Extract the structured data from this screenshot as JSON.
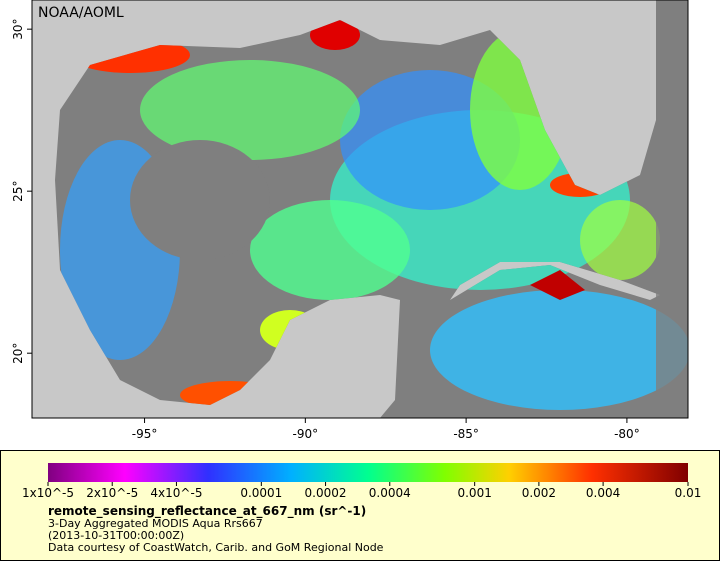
{
  "map": {
    "watermark": "NOAA/AOML",
    "lon_range": [
      -98.5,
      -78.1
    ],
    "lat_range": [
      18,
      30.9
    ],
    "lon_ticks": [
      {
        "value": -95,
        "label": "-95°"
      },
      {
        "value": -90,
        "label": "-90°"
      },
      {
        "value": -85,
        "label": "-85°"
      },
      {
        "value": -80,
        "label": "-80°"
      }
    ],
    "lat_ticks": [
      {
        "value": 20,
        "label": "20°"
      },
      {
        "value": 25,
        "label": "25°"
      },
      {
        "value": 30,
        "label": "30°"
      }
    ]
  },
  "colorbar": {
    "scale": "log",
    "range": [
      1e-05,
      0.01
    ],
    "ticks": [
      {
        "value": 1e-05,
        "label": "1x10^-5"
      },
      {
        "value": 2e-05,
        "label": "2x10^-5"
      },
      {
        "value": 4e-05,
        "label": "4x10^-5"
      },
      0.0001,
      0.0002,
      0.0004,
      0.001,
      0.002,
      0.004,
      0.01
    ]
  },
  "legend": {
    "variable": "remote_sensing_reflectance_at_667_nm (sr^-1)",
    "description": "3-Day Aggregated MODIS Aqua Rrs667",
    "time": "(2013-10-31T00:00:00Z)",
    "credit": "Data courtesy of CoastWatch, Carib. and GoM Regional Node"
  }
}
